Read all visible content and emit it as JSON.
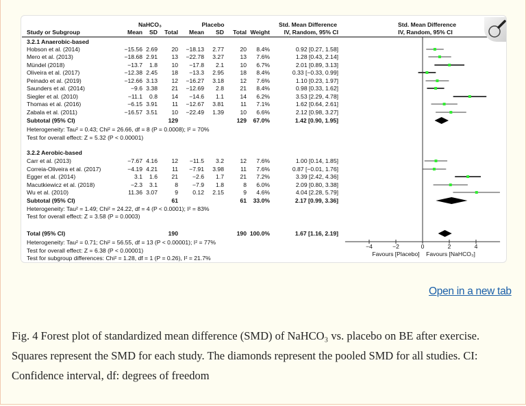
{
  "header": {
    "study_col": "Study or Subgroup",
    "exp_group": "NaHCO₃",
    "ctrl_group": "Placebo",
    "mean": "Mean",
    "sd": "SD",
    "total": "Total",
    "weight": "Weight",
    "smd_title": "Std. Mean Difference",
    "smd_method": "IV, Random, 95% CI",
    "plot_title": "Std. Mean Difference",
    "plot_method": "IV, Random, 95% CI"
  },
  "groups": [
    {
      "title": "3.2.1 Anaerobic-based",
      "studies": [
        {
          "name": "Hobson et al. (2014)",
          "e_mean": "−15.56",
          "e_sd": "2.69",
          "e_total": "20",
          "c_mean": "−18.13",
          "c_sd": "2.77",
          "c_total": "20",
          "weight": "8.4%",
          "ci": "0.92 [0.27, 1.58]",
          "smd": 0.92,
          "lo": 0.27,
          "hi": 1.58,
          "line": "#808080"
        },
        {
          "name": "Mero et al. (2013)",
          "e_mean": "−18.68",
          "e_sd": "2.91",
          "e_total": "13",
          "c_mean": "−22.78",
          "c_sd": "3.27",
          "c_total": "13",
          "weight": "7.6%",
          "ci": "1.28 [0.43, 2.14]",
          "smd": 1.28,
          "lo": 0.43,
          "hi": 2.14,
          "line": "#808080"
        },
        {
          "name": "Mündel (2018)",
          "e_mean": "−13.7",
          "e_sd": "1.8",
          "e_total": "10",
          "c_mean": "−17.8",
          "c_sd": "2.1",
          "c_total": "10",
          "weight": "6.7%",
          "ci": "2.01 [0.89, 3.13]",
          "smd": 2.01,
          "lo": 0.89,
          "hi": 3.13,
          "line": "#000000"
        },
        {
          "name": "Oliveira et al. (2017)",
          "e_mean": "−12.38",
          "e_sd": "2.45",
          "e_total": "18",
          "c_mean": "−13.3",
          "c_sd": "2.95",
          "c_total": "18",
          "weight": "8.4%",
          "ci": "0.33 [−0.33, 0.99]",
          "smd": 0.33,
          "lo": -0.33,
          "hi": 0.99,
          "line": "#000000"
        },
        {
          "name": "Peinado et al. (2019)",
          "e_mean": "−12.66",
          "e_sd": "3.13",
          "e_total": "12",
          "c_mean": "−16.27",
          "c_sd": "3.18",
          "c_total": "12",
          "weight": "7.6%",
          "ci": "1.10 [0.23, 1.97]",
          "smd": 1.1,
          "lo": 0.23,
          "hi": 1.97,
          "line": "#808080"
        },
        {
          "name": "Saunders et al. (2014)",
          "e_mean": "−9.6",
          "e_sd": "3.38",
          "e_total": "21",
          "c_mean": "−12.69",
          "c_sd": "2.8",
          "c_total": "21",
          "weight": "8.4%",
          "ci": "0.98 [0.33, 1.62]",
          "smd": 0.98,
          "lo": 0.33,
          "hi": 1.62,
          "line": "#000000"
        },
        {
          "name": "Siegler et al. (2010)",
          "e_mean": "−11.1",
          "e_sd": "0.8",
          "e_total": "14",
          "c_mean": "−14.6",
          "c_sd": "1.1",
          "c_total": "14",
          "weight": "6.2%",
          "ci": "3.53 [2.29, 4.78]",
          "smd": 3.53,
          "lo": 2.29,
          "hi": 4.78,
          "line": "#000000"
        },
        {
          "name": "Thomas et al. (2016)",
          "e_mean": "−6.15",
          "e_sd": "3.91",
          "e_total": "11",
          "c_mean": "−12.67",
          "c_sd": "3.81",
          "c_total": "11",
          "weight": "7.1%",
          "ci": "1.62 [0.64, 2.61]",
          "smd": 1.62,
          "lo": 0.64,
          "hi": 2.61,
          "line": "#808080"
        },
        {
          "name": "Zabala et al. (2011)",
          "e_mean": "−16.57",
          "e_sd": "3.51",
          "e_total": "10",
          "c_mean": "−22.49",
          "c_sd": "1.39",
          "c_total": "10",
          "weight": "6.6%",
          "ci": "2.12 [0.98, 3.27]",
          "smd": 2.12,
          "lo": 0.98,
          "hi": 3.27,
          "line": "#808080"
        }
      ],
      "subtotal": {
        "name": "Subtotal (95% CI)",
        "e_total": "129",
        "c_total": "129",
        "weight": "67.0%",
        "ci": "1.42 [0.90, 1.95]",
        "smd": 1.42,
        "lo": 0.9,
        "hi": 1.95
      },
      "heterogeneity": "Heterogeneity: Tau² = 0.43; Chi² = 26.66, df = 8 (P = 0.0008); I² = 70%",
      "overall_effect": "Test for overall effect: Z = 5.32 (P < 0.00001)"
    },
    {
      "title": "3.2.2 Aerobic-based",
      "studies": [
        {
          "name": "Carr et al. (2013)",
          "e_mean": "−7.67",
          "e_sd": "4.16",
          "e_total": "12",
          "c_mean": "−11.5",
          "c_sd": "3.2",
          "c_total": "12",
          "weight": "7.6%",
          "ci": "1.00 [0.14, 1.85]",
          "smd": 1.0,
          "lo": 0.14,
          "hi": 1.85,
          "line": "#808080"
        },
        {
          "name": "Correia-Oliveira et al. (2017)",
          "e_mean": "−4.19",
          "e_sd": "4.21",
          "e_total": "11",
          "c_mean": "−7.91",
          "c_sd": "3.98",
          "c_total": "11",
          "weight": "7.6%",
          "ci": "0.87 [−0.01, 1.76]",
          "smd": 0.87,
          "lo": -0.01,
          "hi": 1.76,
          "line": "#808080"
        },
        {
          "name": "Egger et al. (2014)",
          "e_mean": "3.1",
          "e_sd": "1.6",
          "e_total": "21",
          "c_mean": "−2.6",
          "c_sd": "1.7",
          "c_total": "21",
          "weight": "7.2%",
          "ci": "3.39 [2.42, 4.36]",
          "smd": 3.39,
          "lo": 2.42,
          "hi": 4.36,
          "line": "#000000"
        },
        {
          "name": "Macutkiewicz et al. (2018)",
          "e_mean": "−2.3",
          "e_sd": "3.1",
          "e_total": "8",
          "c_mean": "−7.9",
          "c_sd": "1.8",
          "c_total": "8",
          "weight": "6.0%",
          "ci": "2.09 [0.80, 3.38]",
          "smd": 2.09,
          "lo": 0.8,
          "hi": 3.38,
          "line": "#808080"
        },
        {
          "name": "Wu et al. (2010)",
          "e_mean": "11.36",
          "e_sd": "3.07",
          "e_total": "9",
          "c_mean": "0.12",
          "c_sd": "2.15",
          "c_total": "9",
          "weight": "4.6%",
          "ci": "4.04 [2.28, 5.79]",
          "smd": 4.04,
          "lo": 2.28,
          "hi": 5.79,
          "line": "#808080"
        }
      ],
      "subtotal": {
        "name": "Subtotal (95% CI)",
        "e_total": "61",
        "c_total": "61",
        "weight": "33.0%",
        "ci": "2.17 [0.99, 3.36]",
        "smd": 2.17,
        "lo": 0.99,
        "hi": 3.36
      },
      "heterogeneity": "Heterogeneity: Tau² = 1.49; Chi² = 24.22, df = 4 (P < 0.0001); I² = 83%",
      "overall_effect": "Test for overall effect: Z = 3.58 (P = 0.0003)"
    }
  ],
  "total": {
    "name": "Total (95% CI)",
    "e_total": "190",
    "c_total": "190",
    "weight": "100.0%",
    "ci": "1.67 [1.16, 2.19]",
    "smd": 1.67,
    "lo": 1.16,
    "hi": 2.19
  },
  "total_heterogeneity": "Heterogeneity: Tau² = 0.71; Chi² = 56.55, df = 13 (P < 0.00001); I² = 77%",
  "total_overall_effect": "Test for overall effect: Z = 6.38 (P < 0.00001)",
  "subgroup_differences": "Test for subgroup differences: Chi² = 1.28, df = 1 (P = 0.26), I² = 21.7%",
  "chart_data": {
    "type": "forest",
    "xlim": [
      -5.8,
      5.8
    ],
    "ticks": [
      -4,
      -2,
      0,
      2,
      4
    ],
    "favours_left": "Favours [Placebo]",
    "favours_right": "Favours [NaHCO₃]",
    "colors": {
      "point": "#33ee33",
      "diamond": "#000000"
    }
  },
  "link": "Open in a new tab",
  "caption": "Fig. 4 Forest plot of standardized mean difference (SMD) of NaHCO₃ vs. placebo on BE after exercise. Squares represent the SMD for each study. The diamonds represent the pooled SMD for all studies. CI: Confidence interval, df: degrees of freedom"
}
